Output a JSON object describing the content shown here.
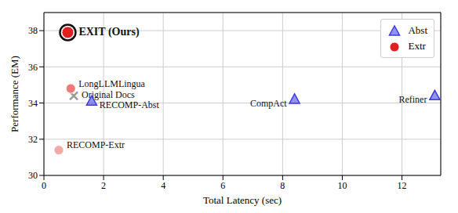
{
  "chart_data": {
    "type": "scatter",
    "x_label": "Total Latency (sec)",
    "y_label": "Performance (EM)",
    "xlim": [
      0,
      13.3
    ],
    "ylim": [
      30,
      39
    ],
    "xticks": [
      0,
      2,
      4,
      6,
      8,
      10,
      12
    ],
    "yticks": [
      30,
      32,
      34,
      36,
      38
    ],
    "grid": true,
    "legend": "upper right",
    "series": [
      {
        "name": "Abst",
        "color": "#3a3ae0",
        "marker": "triangle",
        "x": [
          1.6,
          8.4,
          13.1
        ],
        "y": [
          34.1,
          34.2,
          34.4
        ],
        "labels": [
          "RECOMP-Abst",
          "CompAct",
          "Refiner"
        ]
      },
      {
        "name": "Extr",
        "color": "#e02020",
        "marker": "circle",
        "x": [
          0.8,
          0.9,
          0.5
        ],
        "y": [
          37.9,
          34.8,
          31.4
        ],
        "labels": [
          "EXIT (Ours)",
          "LongLLMLingua",
          "RECOMP-Extr"
        ],
        "colors": [
          "#e02020",
          "#ee7a7a",
          "#f4a8a8"
        ]
      }
    ],
    "annotations": [
      {
        "text": "Original Docs",
        "x": 1.0,
        "y": 34.4,
        "marker": "cross",
        "color": "#999999"
      }
    ]
  }
}
